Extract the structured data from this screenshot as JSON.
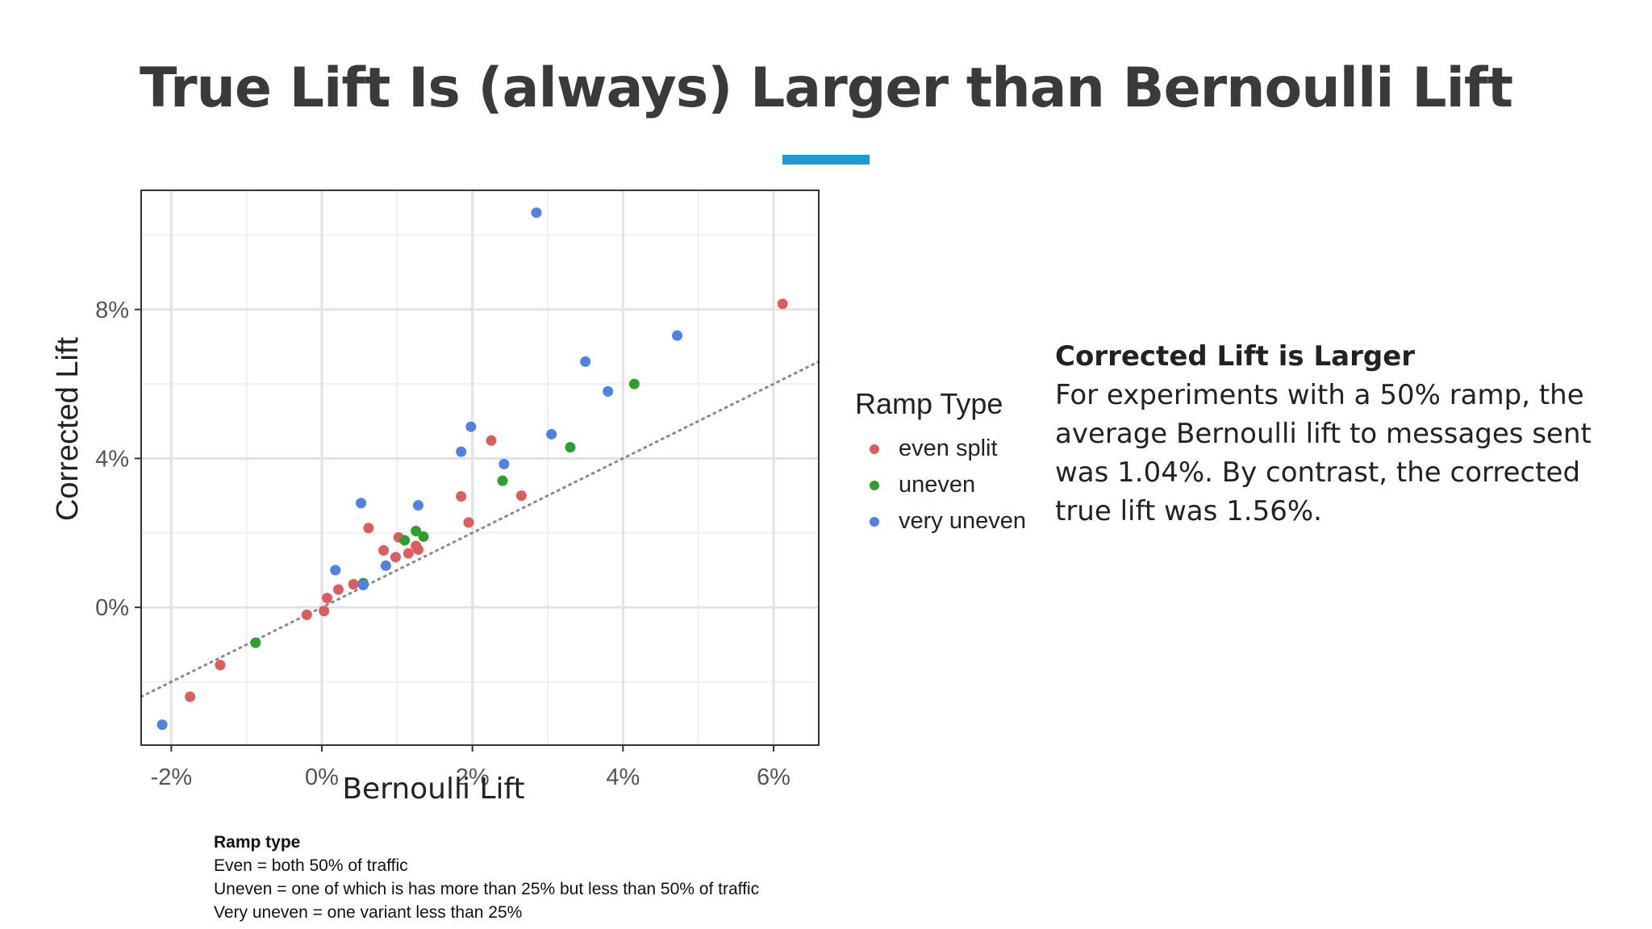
{
  "slide": {
    "title": "True Lift Is (always) Larger than Bernoulli Lift",
    "accent_color": "#1a9bd7"
  },
  "note": {
    "heading": "Corrected Lift is Larger",
    "body": "For experiments with a 50% ramp, the average Bernoulli lift to messages sent was 1.04%. By contrast, the corrected true lift was 1.56%."
  },
  "footnote": {
    "heading": "Ramp type",
    "lines": [
      "Even = both 50% of traffic",
      "Uneven = one of which is has more than 25% but less than 50% of traffic",
      "Very uneven = one variant less than 25%"
    ]
  },
  "chart_data": {
    "type": "scatter",
    "xlabel": "Bernoulli Lift",
    "ylabel": "Corrected Lift",
    "xlim": [
      -2.4,
      6.6
    ],
    "ylim": [
      -3.7,
      11.2
    ],
    "x_ticks": [
      -2,
      0,
      2,
      4,
      6
    ],
    "x_tick_labels": [
      "-2%",
      "0%",
      "2%",
      "4%",
      "6%"
    ],
    "y_ticks": [
      0,
      4,
      8
    ],
    "y_tick_labels": [
      "0%",
      "4%",
      "8%"
    ],
    "grid": true,
    "reference_line": {
      "style": "dotted",
      "color": "#8a8a8a",
      "slope": 1,
      "intercept": 0
    },
    "legend": {
      "title": "Ramp Type",
      "placement": "right"
    },
    "series": [
      {
        "name": "even split",
        "color": "#e05c5c",
        "points": [
          [
            -1.75,
            -2.4
          ],
          [
            -1.35,
            -1.55
          ],
          [
            -0.2,
            -0.2
          ],
          [
            0.03,
            -0.1
          ],
          [
            0.07,
            0.25
          ],
          [
            0.22,
            0.48
          ],
          [
            0.42,
            0.62
          ],
          [
            0.62,
            2.13
          ],
          [
            0.82,
            1.53
          ],
          [
            0.98,
            1.35
          ],
          [
            1.02,
            1.88
          ],
          [
            1.15,
            1.45
          ],
          [
            1.25,
            1.65
          ],
          [
            1.28,
            1.55
          ],
          [
            1.85,
            2.98
          ],
          [
            1.95,
            2.28
          ],
          [
            2.25,
            4.48
          ],
          [
            2.65,
            3.0
          ],
          [
            6.12,
            8.15
          ]
        ]
      },
      {
        "name": "uneven",
        "color": "#2ca02c",
        "points": [
          [
            -0.88,
            -0.95
          ],
          [
            0.55,
            0.65
          ],
          [
            1.1,
            1.8
          ],
          [
            1.25,
            2.05
          ],
          [
            1.35,
            1.9
          ],
          [
            2.4,
            3.4
          ],
          [
            3.3,
            4.3
          ],
          [
            4.15,
            6.0
          ]
        ]
      },
      {
        "name": "very uneven",
        "color": "#4f81e6",
        "points": [
          [
            -2.12,
            -3.15
          ],
          [
            0.18,
            1.0
          ],
          [
            0.52,
            2.8
          ],
          [
            0.55,
            0.6
          ],
          [
            0.85,
            1.12
          ],
          [
            1.28,
            2.74
          ],
          [
            1.85,
            4.18
          ],
          [
            1.98,
            4.85
          ],
          [
            2.42,
            3.85
          ],
          [
            2.85,
            10.6
          ],
          [
            3.05,
            4.65
          ],
          [
            3.5,
            6.6
          ],
          [
            3.8,
            5.8
          ],
          [
            4.72,
            7.3
          ]
        ]
      }
    ]
  }
}
